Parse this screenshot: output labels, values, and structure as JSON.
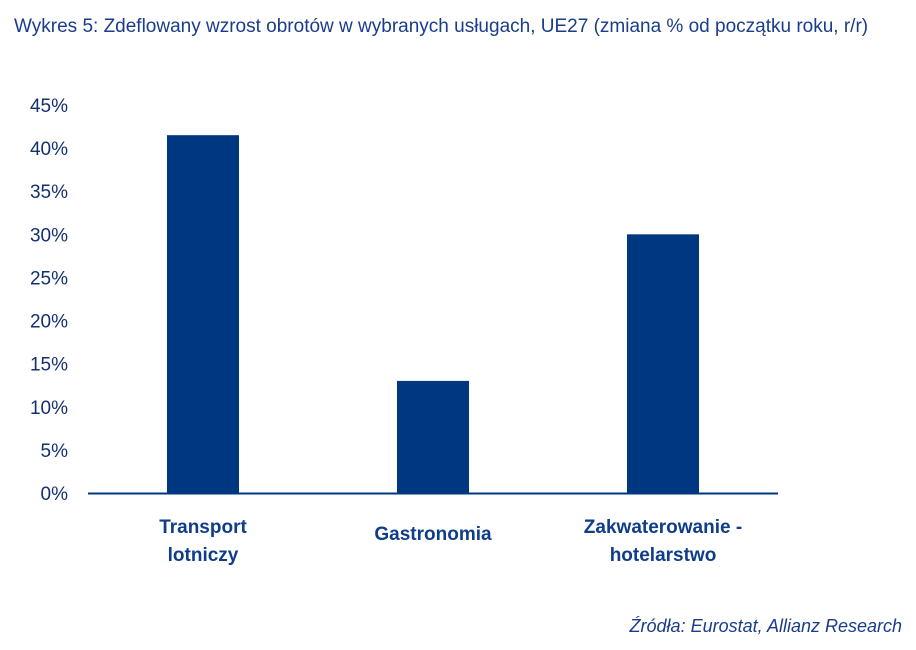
{
  "chart_data": {
    "type": "bar",
    "title": "Wykres 5: Zdeflowany wzrost obrotów w wybranych usługach, UE27 (zmiana % od początku roku, r/r)",
    "categories": [
      [
        "Transport",
        "lotniczy"
      ],
      [
        "Gastronomia"
      ],
      [
        "Zakwaterowanie -",
        "hotelarstwo"
      ]
    ],
    "values": [
      41.5,
      13.0,
      30.0
    ],
    "ylim": [
      0,
      45
    ],
    "yticks": [
      "0%",
      "5%",
      "10%",
      "15%",
      "20%",
      "25%",
      "30%",
      "35%",
      "40%",
      "45%"
    ],
    "ytick_values": [
      0,
      5,
      10,
      15,
      20,
      25,
      30,
      35,
      40,
      45
    ],
    "xlabel": "",
    "ylabel": "",
    "grid": false,
    "legend": "none",
    "bar_color": "#003781",
    "axis_color": "#003781"
  },
  "source": "Źródła: Eurostat, Allianz Research"
}
